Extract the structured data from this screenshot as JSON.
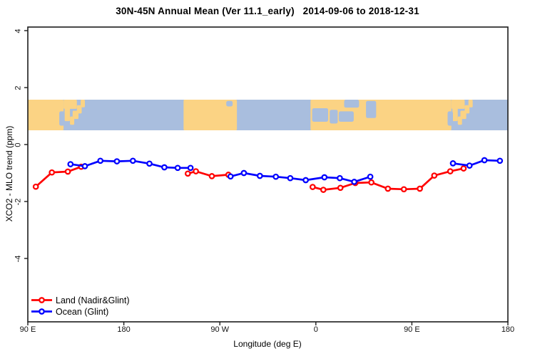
{
  "chart_data": {
    "type": "line",
    "title": "30N-45N Annual Mean (Ver 11.1_early)   2014-09-06 to 2018-12-31",
    "xlabel": "Longitude (deg E)",
    "ylabel": "XCO2 - MLO trend (ppm)",
    "x_ticks": [
      {
        "lon": 90,
        "label": "90 E"
      },
      {
        "lon": 180,
        "label": "180"
      },
      {
        "lon": 270,
        "label": "90 W"
      },
      {
        "lon": 360,
        "label": "0"
      },
      {
        "lon": 450,
        "label": "90 E"
      },
      {
        "lon": 540,
        "label": "180"
      }
    ],
    "y_ticks": [
      {
        "value": 4,
        "label": "4"
      },
      {
        "value": 2,
        "label": "2"
      },
      {
        "value": 0,
        "label": "0"
      },
      {
        "value": -2,
        "label": "-2"
      },
      {
        "value": -4,
        "label": "-4"
      }
    ],
    "xlim_lon": [
      90,
      540
    ],
    "ylim": [
      -6.2,
      4.15
    ],
    "grid": false,
    "legend_position": "bottom-left-inside",
    "series": [
      {
        "name": "Land (Nadir&Glint)",
        "color": "#ff0000",
        "segments": [
          [
            [
              97.5,
              -1.48
            ],
            [
              112.5,
              -0.98
            ],
            [
              127.5,
              -0.95
            ],
            [
              140,
              -0.78
            ]
          ],
          [
            [
              240,
              -1.02
            ],
            [
              247.5,
              -0.94
            ],
            [
              262.5,
              -1.11
            ],
            [
              278,
              -1.06
            ]
          ],
          [
            [
              357,
              -1.49
            ],
            [
              367,
              -1.59
            ],
            [
              383,
              -1.52
            ],
            [
              397,
              -1.35
            ],
            [
              412,
              -1.33
            ],
            [
              427.5,
              -1.55
            ],
            [
              442.5,
              -1.57
            ],
            [
              457.5,
              -1.55
            ],
            [
              471,
              -1.09
            ],
            [
              486,
              -0.94
            ],
            [
              498.5,
              -0.84
            ]
          ]
        ]
      },
      {
        "name": "Ocean (Glint)",
        "color": "#0000ff",
        "segments": [
          [
            [
              130,
              -0.69
            ],
            [
              143.5,
              -0.76
            ],
            [
              158,
              -0.57
            ],
            [
              173.5,
              -0.59
            ],
            [
              188.5,
              -0.57
            ],
            [
              204,
              -0.67
            ],
            [
              218,
              -0.8
            ],
            [
              230.5,
              -0.82
            ],
            [
              242.5,
              -0.82
            ]
          ],
          [
            [
              280,
              -1.12
            ],
            [
              292.5,
              -1.0
            ],
            [
              307.5,
              -1.1
            ],
            [
              322.5,
              -1.13
            ],
            [
              336,
              -1.18
            ],
            [
              350.5,
              -1.25
            ],
            [
              368,
              -1.15
            ],
            [
              382.5,
              -1.18
            ],
            [
              396,
              -1.31
            ],
            [
              411,
              -1.13
            ]
          ],
          [
            [
              488.5,
              -0.66
            ],
            [
              504,
              -0.74
            ],
            [
              518,
              -0.55
            ],
            [
              532.5,
              -0.57
            ]
          ]
        ]
      }
    ],
    "map_band": {
      "description": "world map strip of the 30N-45N latitude band drawn across the plot",
      "land_color": "#fbd384",
      "ocean_color": "#a9bede",
      "value_top": 1.58,
      "value_bottom": 0.5,
      "land": [
        {
          "from": 90,
          "to": 123.5,
          "t": 0,
          "b": 1
        },
        {
          "from": 123.5,
          "to": 136,
          "t": 0,
          "b": 0.3
        },
        {
          "from": 124.5,
          "to": 129.5,
          "t": 0.2,
          "b": 0.7
        },
        {
          "from": 129.5,
          "to": 133.5,
          "t": 0.55,
          "b": 0.82
        },
        {
          "from": 132,
          "to": 137.5,
          "t": 0.36,
          "b": 0.63
        },
        {
          "from": 136,
          "to": 140.5,
          "t": 0.18,
          "b": 0.45
        },
        {
          "from": 139.5,
          "to": 143.5,
          "t": 0,
          "b": 0.25
        },
        {
          "from": 236,
          "to": 286,
          "t": 0,
          "b": 1
        },
        {
          "from": 355,
          "to": 487,
          "t": 0,
          "b": 1
        },
        {
          "from": 487,
          "to": 499.5,
          "t": 0,
          "b": 0.3
        },
        {
          "from": 488,
          "to": 493,
          "t": 0.2,
          "b": 0.7
        },
        {
          "from": 493,
          "to": 497,
          "t": 0.55,
          "b": 0.82
        },
        {
          "from": 495.5,
          "to": 501,
          "t": 0.36,
          "b": 0.63
        },
        {
          "from": 499.5,
          "to": 504,
          "t": 0.18,
          "b": 0.45
        },
        {
          "from": 503,
          "to": 507,
          "t": 0,
          "b": 0.25
        }
      ],
      "seas": [
        {
          "from": 119.5,
          "to": 124.5,
          "t": 0.38,
          "b": 0.85
        },
        {
          "from": 276,
          "to": 282,
          "t": 0.04,
          "b": 0.22
        },
        {
          "from": 356.5,
          "to": 371.5,
          "t": 0.28,
          "b": 0.72
        },
        {
          "from": 373,
          "to": 380.5,
          "t": 0.33,
          "b": 0.78
        },
        {
          "from": 381.5,
          "to": 395.5,
          "t": 0.38,
          "b": 0.72
        },
        {
          "from": 386.5,
          "to": 400.5,
          "t": 0,
          "b": 0.26
        },
        {
          "from": 407,
          "to": 416.5,
          "t": 0.04,
          "b": 0.6
        },
        {
          "from": 483.5,
          "to": 488.5,
          "t": 0.38,
          "b": 0.85
        }
      ]
    }
  },
  "legend": {
    "items": [
      {
        "label": "Land (Nadir&Glint)"
      },
      {
        "label": "Ocean (Glint)"
      }
    ]
  }
}
